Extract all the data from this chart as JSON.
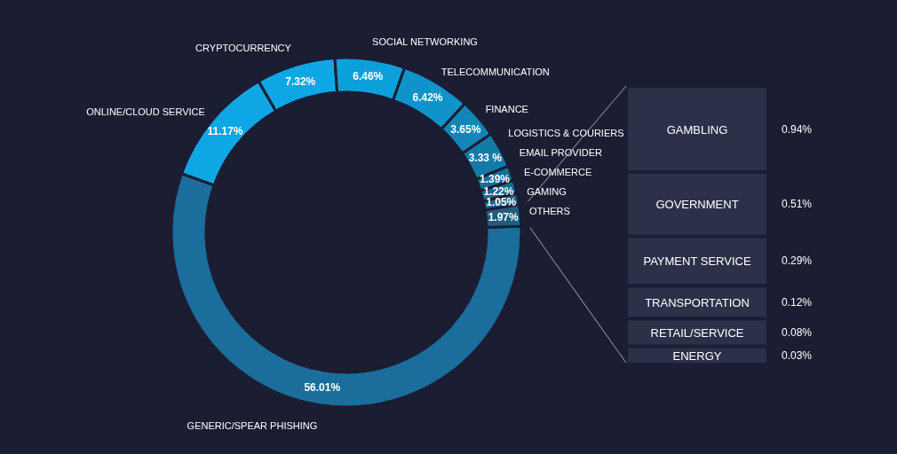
{
  "chart_data": [
    {
      "type": "donut",
      "categories": [
        "GENERIC/SPEAR PHISHING",
        "ONLINE/CLOUD SERVICE",
        "CRYPTOCURRENCY",
        "SOCIAL NETWORKING",
        "TELECOMMUNICATION",
        "FINANCE",
        "LOGISTICS & COURIERS",
        "EMAIL PROVIDER",
        "E-COMMERCE",
        "GAMING",
        "OTHERS"
      ],
      "values": [
        56.01,
        11.17,
        7.32,
        6.46,
        6.42,
        3.65,
        3.33,
        1.39,
        1.22,
        1.05,
        1.97
      ],
      "value_labels": [
        "56.01%",
        "11.17%",
        "7.32%",
        "6.46%",
        "6.42%",
        "3.65%",
        "3.33 %",
        "1.39%",
        "1.22%",
        "1.05%",
        "1.97%"
      ],
      "colors": [
        "#1b6d9c",
        "#0ea6e4",
        "#0da7e6",
        "#0ca0db",
        "#0f93ca",
        "#1286b6",
        "#147aa8",
        "#176f99",
        "#196a90",
        "#1c6287",
        "#1f5c80"
      ]
    },
    {
      "type": "other",
      "categories": [
        "GAMBLING",
        "GOVERNMENT",
        "PAYMENT SERVICE",
        "TRANSPORTATION",
        "RETAIL/SERVICE",
        "ENERGY"
      ],
      "values": [
        0.94,
        0.51,
        0.29,
        0.12,
        0.08,
        0.03
      ],
      "value_labels": [
        "0.94%",
        "0.51%",
        "0.29%",
        "0.12%",
        "0.08%",
        "0.03%"
      ],
      "color": "#2c3049"
    }
  ]
}
